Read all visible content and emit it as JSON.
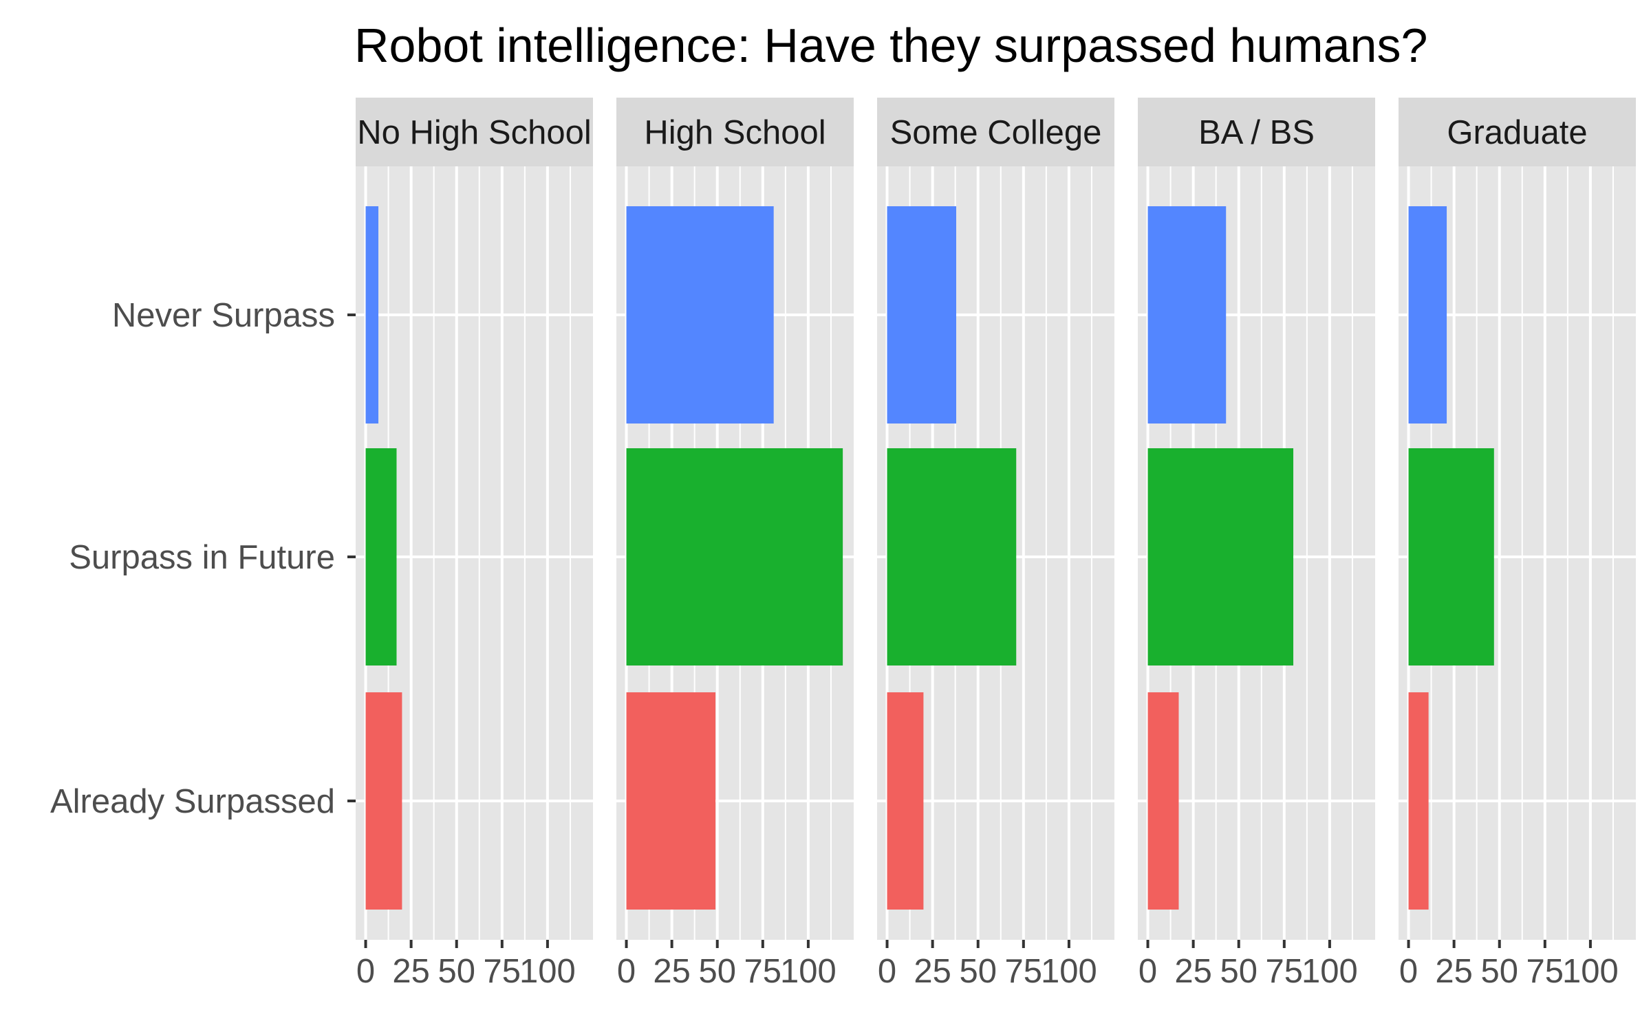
{
  "chart_data": {
    "type": "bar",
    "orientation": "horizontal",
    "title": "Robot intelligence: Have they surpassed humans?",
    "xlabel": "",
    "ylabel": "",
    "categories": [
      "Never Surpass",
      "Surpass in Future",
      "Already Surpassed"
    ],
    "facets": [
      "No High School",
      "High School",
      "Some College",
      "BA / BS",
      "Graduate"
    ],
    "category_colors": {
      "Never Surpass": "#5386FF",
      "Surpass in Future": "#19B02E",
      "Already Surpassed": "#F2605D"
    },
    "values": {
      "No High School": [
        7,
        17,
        20
      ],
      "High School": [
        81,
        119,
        49
      ],
      "Some College": [
        38,
        71,
        20
      ],
      "BA / BS": [
        43,
        80,
        17
      ],
      "Graduate": [
        21,
        47,
        11
      ]
    },
    "x_ticks": [
      0,
      25,
      50,
      75,
      100
    ],
    "x_tick_labels": [
      "0",
      "25",
      "50",
      "75",
      "100"
    ],
    "xlim": [
      -5.5,
      125
    ],
    "grid": true,
    "legend": "none",
    "panel_background": "#E5E5E5",
    "strip_background": "#D9D9D9",
    "grid_color": "#FFFFFF"
  }
}
